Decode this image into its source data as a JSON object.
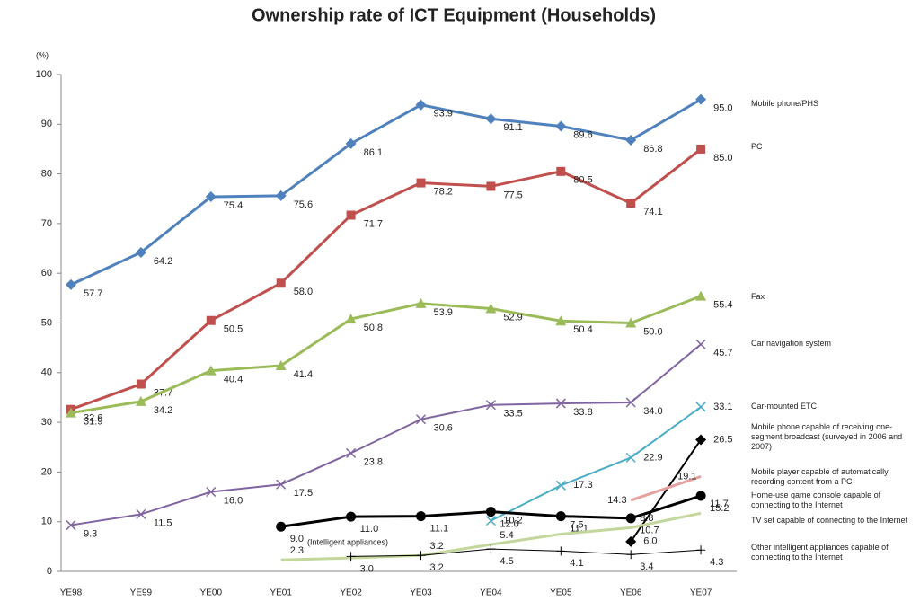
{
  "chart_data": {
    "type": "line",
    "title": "Ownership rate of ICT Equipment (Households)",
    "y_unit": "(%)",
    "annotation": "(Intelligent appliances)",
    "categories": [
      "YE98",
      "YE99",
      "YE00",
      "YE01",
      "YE02",
      "YE03",
      "YE04",
      "YE05",
      "YE06",
      "YE07"
    ],
    "ylim": [
      0,
      100
    ],
    "yticks": [
      0,
      10,
      20,
      30,
      40,
      50,
      60,
      70,
      80,
      90,
      100
    ],
    "series": [
      {
        "name": "Mobile phone/PHS",
        "color": "#4f81bd",
        "marker": "diamond",
        "values": [
          57.7,
          64.2,
          75.4,
          75.6,
          86.1,
          93.9,
          91.1,
          89.6,
          86.8,
          95.0
        ],
        "value_labels": [
          "57.7",
          "64.2",
          "75.4",
          "75.6",
          "86.1",
          "93.9",
          "91.1",
          "89.6",
          "86.8",
          "95.0"
        ]
      },
      {
        "name": "PC",
        "color": "#c0504d",
        "marker": "square",
        "values": [
          32.6,
          37.7,
          50.5,
          58.0,
          71.7,
          78.2,
          77.5,
          80.5,
          74.1,
          85.0
        ],
        "value_labels": [
          "32.6",
          "37.7",
          "50.5",
          "58.0",
          "71.7",
          "78.2",
          "77.5",
          "80.5",
          "74.1",
          "85.0"
        ]
      },
      {
        "name": "Fax",
        "color": "#9bbb59",
        "marker": "triangle",
        "values": [
          31.9,
          34.2,
          40.4,
          41.4,
          50.8,
          53.9,
          52.9,
          50.4,
          50.0,
          55.4
        ],
        "value_labels": [
          "31.9",
          "34.2",
          "40.4",
          "41.4",
          "50.8",
          "53.9",
          "52.9",
          "50.4",
          "50.0",
          "55.4"
        ]
      },
      {
        "name": "Car navigation system",
        "color": "#8064a2",
        "marker": "x",
        "values": [
          9.3,
          11.5,
          16.0,
          17.5,
          23.8,
          30.6,
          33.5,
          33.8,
          34.0,
          45.7
        ],
        "value_labels": [
          "9.3",
          "11.5",
          "16.0",
          "17.5",
          "23.8",
          "30.6",
          "33.5",
          "33.8",
          "34.0",
          "45.7"
        ]
      },
      {
        "name": "Car-mounted ETC",
        "color": "#4bacc6",
        "marker": "x",
        "values": [
          null,
          null,
          null,
          null,
          null,
          null,
          10.2,
          17.3,
          22.9,
          33.1
        ],
        "value_labels": [
          null,
          null,
          null,
          null,
          null,
          null,
          "10.2",
          "17.3",
          "22.9",
          "33.1"
        ]
      },
      {
        "name": "Mobile phone capable of receiving one-segment broadcast (surveyed in 2006 and 2007)",
        "color": "#000000",
        "marker": "diamond",
        "values": [
          null,
          null,
          null,
          null,
          null,
          null,
          null,
          null,
          6.0,
          26.5
        ],
        "value_labels": [
          null,
          null,
          null,
          null,
          null,
          null,
          null,
          null,
          "6.0",
          "26.5"
        ]
      },
      {
        "name": "Mobile player capable of automatically recording content from a PC",
        "color": "#e6a09e",
        "marker": "none",
        "values": [
          null,
          null,
          null,
          null,
          null,
          null,
          null,
          null,
          14.3,
          19.1
        ],
        "value_labels": [
          null,
          null,
          null,
          null,
          null,
          null,
          null,
          null,
          "14.3",
          "19.1"
        ]
      },
      {
        "name": "Home-use game console capable of connecting to the Internet",
        "color": "#000000",
        "marker": "circle",
        "values": [
          null,
          null,
          null,
          9.0,
          11.0,
          11.1,
          12.0,
          11.1,
          10.7,
          15.2
        ],
        "value_labels": [
          null,
          null,
          null,
          "9.0",
          "11.0",
          "11.1",
          "12.0",
          "11.1",
          "10.7",
          "15.2"
        ]
      },
      {
        "name": "TV set capable of connecting to the Internet",
        "color": "#c3d69b",
        "marker": "none",
        "values": [
          null,
          null,
          null,
          2.3,
          2.7,
          3.2,
          5.4,
          7.5,
          8.8,
          11.7
        ],
        "value_labels": [
          null,
          null,
          null,
          "2.3",
          null,
          "3.2",
          "5.4",
          "7.5",
          "8.8",
          "11.7"
        ]
      },
      {
        "name": "Other intelligent appliances capable of connecting to the Internet",
        "color": "#000000",
        "marker": "plus",
        "values": [
          null,
          null,
          null,
          null,
          3.0,
          3.2,
          4.5,
          4.1,
          3.4,
          4.3
        ],
        "value_labels": [
          null,
          null,
          null,
          null,
          "3.0",
          "3.2",
          "4.5",
          "4.1",
          "3.4",
          "4.3"
        ]
      }
    ]
  }
}
